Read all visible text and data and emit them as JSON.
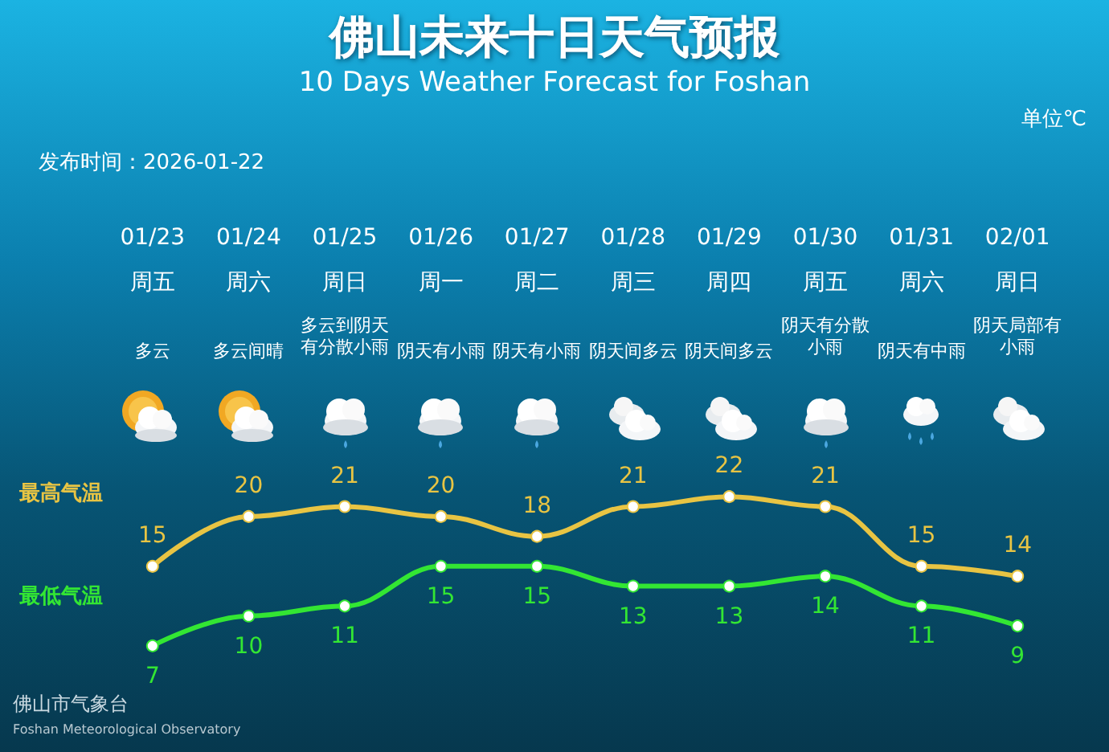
{
  "chart_data": {
    "type": "line",
    "title": "佛山未来十日天气预报",
    "subtitle": "10 Days Weather Forecast for Foshan",
    "annotations": [
      "单位℃",
      "发布时间：2026-01-22",
      "佛山市气象台",
      "Foshan Meteorological Observatory"
    ],
    "categories": [
      "01/23周五多云",
      "01/24周六多云间晴",
      "01/25周日多云到阴天有分散小雨",
      "01/26周一阴天有小雨",
      "01/27周二阴天有小雨",
      "01/28周三阴天间多云",
      "01/29周四阴天间多云",
      "01/30周五阴天有分散小雨",
      "01/31周六阴天有中雨",
      "02/01周日阴天局部有小雨"
    ],
    "series": [
      {
        "name": "最高气温",
        "color": "#e8c443",
        "values": [
          15,
          20,
          21,
          20,
          18,
          21,
          22,
          21,
          15,
          14
        ]
      },
      {
        "name": "最低气温",
        "color": "#33e633",
        "values": [
          7,
          10,
          11,
          15,
          15,
          13,
          13,
          14,
          11,
          9
        ]
      }
    ],
    "data_labels": true,
    "marker": "circle",
    "line_style": "solid",
    "grid": false,
    "legend": false
  }
}
